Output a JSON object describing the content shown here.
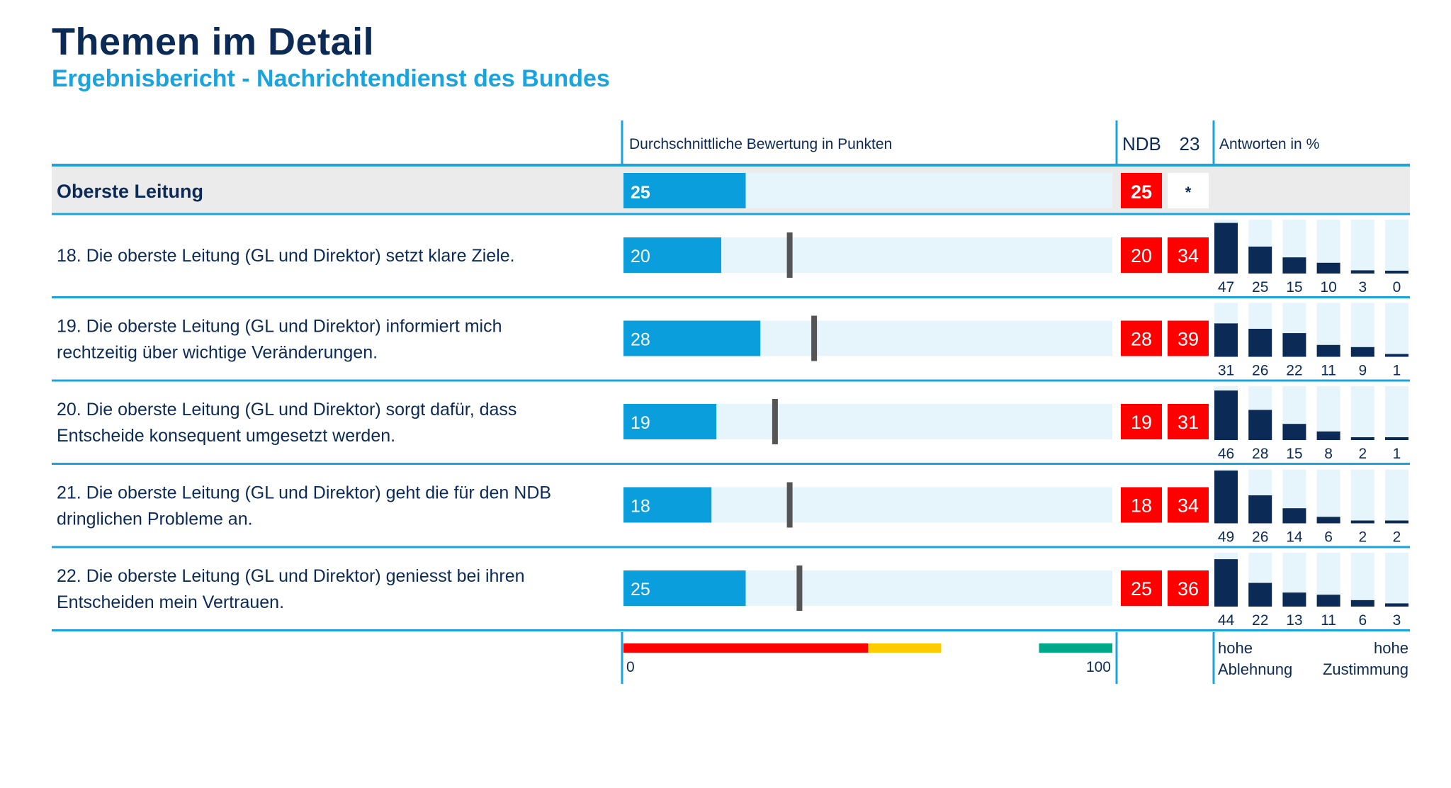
{
  "header": {
    "title": "Themen im Detail",
    "subtitle": "Ergebnisbericht - Nachrichtendienst des Bundes"
  },
  "columns": {
    "avg_label": "Durchschnittliche Bewertung in Punkten",
    "ndb_label": "NDB",
    "ndb_year": "23",
    "answers_label": "Antworten in %"
  },
  "footer": {
    "scale_min": "0",
    "scale_max": "100",
    "left_label_line1": "hohe",
    "left_label_line2": "Ablehnung",
    "right_label_line1": "hohe",
    "right_label_line2": "Zustimmung"
  },
  "colors": {
    "dark_navy": "#0b2a55",
    "accent_blue": "#1aa3dc",
    "bar_blue": "#0a9fdc",
    "bar_track": "#e6f5fb",
    "red": "#ff0000",
    "yellow": "#ffcc00",
    "green": "#00a88a",
    "marker_gray": "#555555",
    "summary_bg": "#ebebeb"
  },
  "chart_data": {
    "type": "bar",
    "xlim": [
      0,
      100
    ],
    "scale_bands": [
      {
        "from": 0,
        "to": 50,
        "color": "#ff0000"
      },
      {
        "from": 50,
        "to": 65,
        "color": "#ffcc00"
      },
      {
        "from": 85,
        "to": 100,
        "color": "#00a88a"
      }
    ],
    "summary": {
      "label": "Oberste Leitung",
      "value": 25,
      "ndb": "25",
      "year_value": "*"
    },
    "rows": [
      {
        "label_lines": [
          "18. Die oberste Leitung (GL und Direktor) setzt klare Ziele."
        ],
        "value": 20,
        "marker": 34,
        "ndb": "20",
        "year_value": "34",
        "answers": [
          47,
          25,
          15,
          10,
          3,
          0
        ]
      },
      {
        "label_lines": [
          "19. Die oberste Leitung (GL und Direktor) informiert mich",
          "rechtzeitig über wichtige Veränderungen."
        ],
        "value": 28,
        "marker": 39,
        "ndb": "28",
        "year_value": "39",
        "answers": [
          31,
          26,
          22,
          11,
          9,
          1
        ]
      },
      {
        "label_lines": [
          "20. Die oberste Leitung (GL und Direktor) sorgt dafür, dass",
          "Entscheide konsequent umgesetzt werden."
        ],
        "value": 19,
        "marker": 31,
        "ndb": "19",
        "year_value": "31",
        "answers": [
          46,
          28,
          15,
          8,
          2,
          1
        ]
      },
      {
        "label_lines": [
          "21. Die oberste Leitung (GL und Direktor) geht die für den NDB",
          "dringlichen Probleme an."
        ],
        "value": 18,
        "marker": 34,
        "ndb": "18",
        "year_value": "34",
        "answers": [
          49,
          26,
          14,
          6,
          2,
          2
        ]
      },
      {
        "label_lines": [
          "22. Die oberste Leitung (GL und Direktor) geniesst bei ihren",
          "Entscheiden mein Vertrauen."
        ],
        "value": 25,
        "marker": 36,
        "ndb": "25",
        "year_value": "36",
        "answers": [
          44,
          22,
          13,
          11,
          6,
          3
        ]
      }
    ]
  }
}
